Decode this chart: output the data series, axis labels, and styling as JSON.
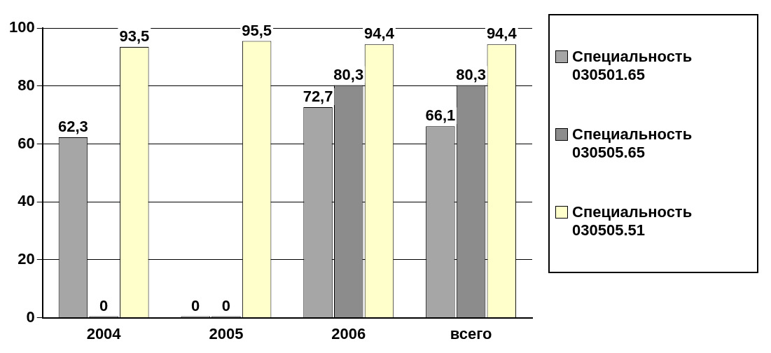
{
  "chart_data": {
    "type": "bar",
    "categories": [
      "2004",
      "2005",
      "2006",
      "всего"
    ],
    "series": [
      {
        "name": "Специальность 030501.65",
        "color": "#a6a6a6",
        "values": [
          62.3,
          0,
          72.7,
          66.1
        ],
        "value_labels": [
          "62,3",
          "0",
          "72,7",
          "66,1"
        ]
      },
      {
        "name": "Специальность 030505.65",
        "color": "#8c8c8c",
        "values": [
          0,
          0,
          80.3,
          80.3
        ],
        "value_labels": [
          "0",
          "0",
          "80,3",
          "80,3"
        ]
      },
      {
        "name": "Специальность 030505.51",
        "color": "#ffffcc",
        "values": [
          93.5,
          95.5,
          94.4,
          94.4
        ],
        "value_labels": [
          "93,5",
          "95,5",
          "94,4",
          "94,4"
        ]
      }
    ],
    "ylim": [
      0,
      100
    ],
    "yticks": [
      0,
      20,
      40,
      60,
      80,
      100
    ],
    "grid": "y",
    "legend": "right"
  }
}
